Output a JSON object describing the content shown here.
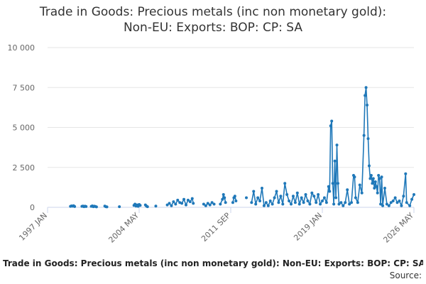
{
  "chart_data": {
    "type": "line",
    "title": "Trade in Goods: Precious metals (inc non monetary gold): Non-EU: Exports: BOP: CP: SA",
    "source_label": "Source:",
    "color": "#1f78b9",
    "grid": true,
    "xlim": [
      "1997 JAN",
      "2026 MAY"
    ],
    "xticks": [
      "1997 JAN",
      "2004 MAY",
      "2011 SEP",
      "2019 JAN",
      "2026 MAY"
    ],
    "ylim": [
      0,
      10000
    ],
    "yticks": [
      0,
      {
        "value": 2500,
        "label": "2 500"
      },
      {
        "value": 5000,
        "label": "5 000"
      },
      {
        "value": 7500,
        "label": "7 500"
      },
      {
        "value": 10000,
        "label": "10 000"
      }
    ],
    "x": [
      "1998 NOV",
      "1998 DEC",
      "1999 JAN",
      "1999 FEB",
      "1999 MAR",
      "1999 JUN",
      "1999 OCT",
      "1999 NOV",
      "1999 DEC",
      "2000 JAN",
      "2000 FEB",
      "2000 MAR",
      "2000 JUL",
      "2000 AUG",
      "2000 SEP",
      "2000 OCT",
      "2000 NOV",
      "2000 DEC",
      "2001 MAR",
      "2001 AUG",
      "2001 SEP",
      "2001 OCT",
      "2002 MAR",
      "2002 OCT",
      "2003 MAR",
      "2003 DEC",
      "2004 JAN",
      "2004 FEB",
      "2004 MAR",
      "2004 APR",
      "2004 MAY",
      "2004 JUN",
      "2004 AUG",
      "2004 NOV",
      "2004 DEC",
      "2005 JAN",
      "2005 MAR",
      "2005 SEP",
      "2006 FEB",
      "2006 AUG",
      "2006 OCT",
      "2006 DEC",
      "2007 FEB",
      "2007 APR",
      "2007 JUN",
      "2007 AUG",
      "2007 OCT",
      "2007 DEC",
      "2008 FEB",
      "2008 APR",
      "2008 JUN",
      "2008 AUG",
      "2008 SEP",
      "2009 JAN",
      "2009 JUL",
      "2009 SEP",
      "2009 NOV",
      "2010 JAN",
      "2010 MAR",
      "2010 MAY",
      "2010 AUG",
      "2010 NOV",
      "2011 JAN",
      "2011 FEB",
      "2011 MAR",
      "2011 APR",
      "2011 JUL",
      "2011 NOV",
      "2011 DEC",
      "2012 JAN",
      "2012 FEB",
      "2012 JUN",
      "2012 DEC",
      "2013 MAR",
      "2013 MAY",
      "2013 JUL",
      "2013 SEP",
      "2013 NOV",
      "2014 JAN",
      "2014 MAR",
      "2014 MAY",
      "2014 JUL",
      "2014 SEP",
      "2014 NOV",
      "2015 JAN",
      "2015 MAR",
      "2015 MAY",
      "2015 JUL",
      "2015 SEP",
      "2015 NOV",
      "2016 JAN",
      "2016 MAR",
      "2016 MAY",
      "2016 JUL",
      "2016 SEP",
      "2016 NOV",
      "2017 JAN",
      "2017 MAR",
      "2017 MAY",
      "2017 JUL",
      "2017 SEP",
      "2017 NOV",
      "2018 JAN",
      "2018 MAR",
      "2018 MAY",
      "2018 JUL",
      "2018 SEP",
      "2018 NOV",
      "2019 JAN",
      "2019 MAR",
      "2019 MAY",
      "2019 JUL",
      "2019 AUG",
      "2019 SEP",
      "2019 OCT",
      "2019 NOV",
      "2019 DEC",
      "2020 JAN",
      "2020 FEB",
      "2020 MAR",
      "2020 APR",
      "2020 MAY",
      "2020 JUL",
      "2020 SEP",
      "2020 NOV",
      "2021 JAN",
      "2021 MAR",
      "2021 MAY",
      "2021 JUL",
      "2021 AUG",
      "2021 SEP",
      "2021 NOV",
      "2022 JAN",
      "2022 MAR",
      "2022 MAY",
      "2022 JUN",
      "2022 JUL",
      "2022 AUG",
      "2022 SEP",
      "2022 OCT",
      "2022 NOV",
      "2022 DEC",
      "2023 JAN",
      "2023 FEB",
      "2023 MAR",
      "2023 APR",
      "2023 MAY",
      "2023 JUN",
      "2023 JUL",
      "2023 AUG",
      "2023 SEP",
      "2023 OCT",
      "2023 NOV",
      "2024 JAN",
      "2024 MAR",
      "2024 MAY",
      "2024 JUL",
      "2024 SEP",
      "2024 NOV",
      "2025 JAN",
      "2025 MAR",
      "2025 MAY",
      "2025 JUL",
      "2025 SEP",
      "2025 OCT",
      "2026 JAN",
      "2026 MAR",
      "2026 MAY"
    ],
    "values": [
      60,
      90,
      70,
      100,
      50,
      null,
      60,
      80,
      40,
      70,
      50,
      null,
      60,
      90,
      40,
      70,
      50,
      30,
      null,
      80,
      40,
      30,
      null,
      40,
      null,
      120,
      200,
      80,
      150,
      60,
      180,
      120,
      null,
      150,
      80,
      40,
      null,
      80,
      null,
      150,
      250,
      100,
      350,
      200,
      450,
      300,
      250,
      500,
      150,
      450,
      350,
      550,
      250,
      null,
      200,
      100,
      250,
      150,
      300,
      200,
      null,
      200,
      500,
      800,
      600,
      300,
      null,
      300,
      600,
      700,
      400,
      null,
      600,
      null,
      300,
      1000,
      200,
      600,
      400,
      1200,
      100,
      300,
      100,
      400,
      200,
      600,
      1000,
      300,
      700,
      200,
      1500,
      800,
      400,
      200,
      700,
      300,
      900,
      200,
      600,
      300,
      800,
      400,
      200,
      900,
      700,
      300,
      800,
      200,
      400,
      600,
      300,
      1300,
      1000,
      5100,
      5400,
      1500,
      200,
      2900,
      600,
      3900,
      1500,
      200,
      300,
      100,
      300,
      1100,
      200,
      300,
      2000,
      1900,
      600,
      300,
      1400,
      900,
      4500,
      7000,
      7500,
      6400,
      4300,
      2600,
      1800,
      2000,
      1500,
      1800,
      1200,
      1600,
      1300,
      900,
      2000,
      1800,
      200,
      1900,
      100,
      1200,
      200,
      100,
      300,
      400,
      600,
      300,
      400,
      100,
      700,
      2100,
      300,
      100,
      500,
      800
    ]
  }
}
